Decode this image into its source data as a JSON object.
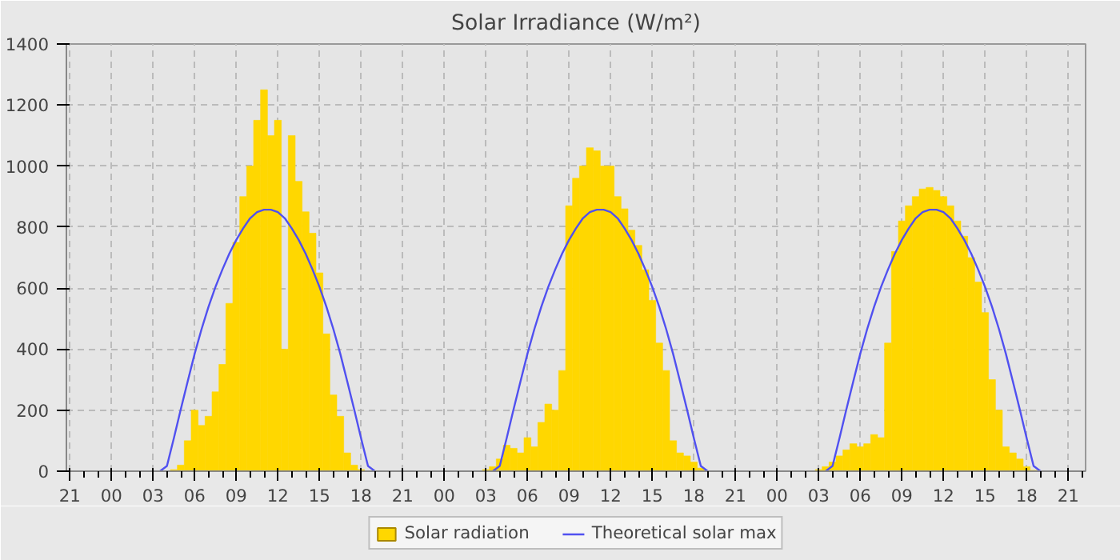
{
  "chart_data": {
    "type": "bar",
    "title": "Solar Irradiance (W/m²)",
    "ylim": [
      0,
      1400
    ],
    "yticks": [
      0,
      200,
      400,
      600,
      800,
      1000,
      1200,
      1400
    ],
    "grid": true,
    "legend": "bottom",
    "categories": [
      "21",
      null,
      null,
      null,
      null,
      null,
      "00",
      null,
      null,
      null,
      null,
      null,
      "03",
      null,
      null,
      null,
      null,
      null,
      "06",
      null,
      null,
      null,
      null,
      null,
      "09",
      null,
      null,
      null,
      null,
      null,
      "12",
      null,
      null,
      null,
      null,
      null,
      "15",
      null,
      null,
      null,
      null,
      null,
      "18",
      null,
      null,
      null,
      null,
      null,
      "21",
      null,
      null,
      null,
      null,
      null,
      "00",
      null,
      null,
      null,
      null,
      null,
      "03",
      null,
      null,
      null,
      null,
      null,
      "06",
      null,
      null,
      null,
      null,
      null,
      "09",
      null,
      null,
      null,
      null,
      null,
      "12",
      null,
      null,
      null,
      null,
      null,
      "15",
      null,
      null,
      null,
      null,
      null,
      "18",
      null,
      null,
      null,
      null,
      null,
      "21",
      null,
      null,
      null,
      null,
      null,
      "00",
      null,
      null,
      null,
      null,
      null,
      "03",
      null,
      null,
      null,
      null,
      null,
      "06",
      null,
      null,
      null,
      null,
      null,
      "09",
      null,
      null,
      null,
      null,
      null,
      "12",
      null,
      null,
      null,
      null,
      null,
      "15",
      null,
      null,
      null,
      null,
      null,
      "18",
      null,
      null,
      null,
      null,
      null,
      "21",
      null,
      null
    ],
    "series": [
      {
        "name": "Solar radiation",
        "color": "#ffd700",
        "values": [
          null,
          null,
          null,
          null,
          null,
          null,
          null,
          null,
          null,
          null,
          null,
          null,
          null,
          null,
          null,
          5,
          20,
          100,
          200,
          150,
          180,
          260,
          350,
          550,
          750,
          900,
          1000,
          1150,
          1250,
          1100,
          1150,
          400,
          1100,
          950,
          850,
          780,
          650,
          450,
          250,
          180,
          60,
          20,
          5,
          null,
          null,
          null,
          null,
          null,
          null,
          null,
          null,
          null,
          null,
          null,
          null,
          null,
          null,
          null,
          null,
          null,
          5,
          15,
          40,
          85,
          75,
          60,
          110,
          80,
          160,
          220,
          200,
          330,
          870,
          960,
          1000,
          1060,
          1050,
          1000,
          1000,
          900,
          860,
          790,
          740,
          660,
          560,
          420,
          330,
          100,
          60,
          50,
          30,
          10,
          null,
          null,
          null,
          null,
          null,
          null,
          null,
          null,
          null,
          null,
          null,
          null,
          null,
          null,
          null,
          null,
          5,
          15,
          30,
          50,
          70,
          90,
          80,
          90,
          120,
          110,
          420,
          720,
          820,
          870,
          900,
          925,
          930,
          920,
          900,
          870,
          820,
          770,
          700,
          620,
          520,
          300,
          200,
          80,
          60,
          40,
          15,
          3,
          null,
          null,
          null,
          null,
          null,
          null,
          null
        ]
      },
      {
        "name": "Theoretical solar max",
        "type": "line",
        "color": "#5050f0",
        "values": [
          null,
          null,
          null,
          null,
          null,
          null,
          null,
          null,
          null,
          null,
          null,
          null,
          null,
          0,
          17,
          108,
          203,
          295,
          385,
          466,
          539,
          604,
          661,
          713,
          758,
          796,
          829,
          849,
          857,
          857,
          849,
          829,
          796,
          758,
          713,
          661,
          604,
          539,
          466,
          385,
          295,
          203,
          108,
          17,
          0,
          null,
          null,
          null,
          null,
          null,
          null,
          null,
          null,
          null,
          null,
          null,
          null,
          null,
          null,
          null,
          null,
          0,
          17,
          108,
          203,
          295,
          385,
          466,
          539,
          604,
          661,
          713,
          758,
          796,
          829,
          849,
          857,
          857,
          849,
          829,
          796,
          758,
          713,
          661,
          604,
          539,
          466,
          385,
          295,
          203,
          108,
          17,
          0,
          null,
          null,
          null,
          null,
          null,
          null,
          null,
          null,
          null,
          null,
          null,
          null,
          null,
          null,
          null,
          null,
          0,
          17,
          108,
          203,
          295,
          385,
          466,
          539,
          604,
          661,
          713,
          758,
          796,
          829,
          849,
          857,
          857,
          849,
          829,
          796,
          758,
          713,
          661,
          604,
          539,
          466,
          385,
          295,
          203,
          108,
          17,
          0,
          null,
          null,
          null,
          null,
          null,
          null
        ]
      }
    ]
  }
}
